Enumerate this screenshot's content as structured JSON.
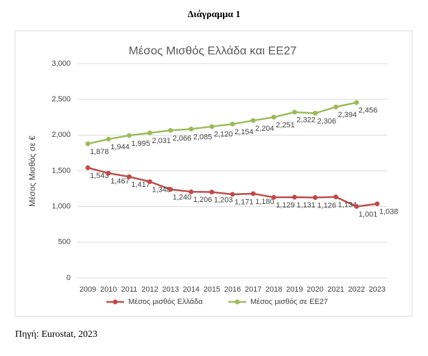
{
  "document": {
    "caption": "Διάγραμμα 1",
    "source": "Πηγή: Eurostat, 2023"
  },
  "chart_data": {
    "type": "line",
    "title": "Μέσος Μισθός Ελλάδα και ΕΕ27",
    "y_label": "Μέσος Μισθός σε €",
    "categories": [
      "2009",
      "2010",
      "2011",
      "2012",
      "2013",
      "2014",
      "2015",
      "2016",
      "2017",
      "2018",
      "2019",
      "2020",
      "2021",
      "2022",
      "2023"
    ],
    "series": [
      {
        "name": "Μέσος μισθός Ελλάδα",
        "color": "#be4b48",
        "values": [
          1543,
          1467,
          1417,
          1348,
          1240,
          1206,
          1203,
          1171,
          1180,
          1129,
          1131,
          1126,
          1134,
          1001,
          1038
        ],
        "value_labels": [
          "1,543",
          "1,467",
          "1,417",
          "1,348",
          "1,240",
          "1,206",
          "1,203",
          "1,171",
          "1,180",
          "1,129",
          "1,131",
          "1,126",
          "1,134",
          "1,001",
          "1,038"
        ]
      },
      {
        "name": "Μέσος μισθός σε ΕΕ27",
        "color": "#9bbb59",
        "values": [
          1878,
          1944,
          1995,
          2031,
          2066,
          2085,
          2120,
          2154,
          2204,
          2251,
          2322,
          2306,
          2394,
          2456,
          null
        ],
        "value_labels": [
          "1,878",
          "1,944",
          "1,995",
          "2,031",
          "2,066",
          "2,085",
          "2,120",
          "2,154",
          "2,204",
          "2,251",
          "2,322",
          "2,306",
          "2,394",
          "2,456",
          null
        ]
      }
    ],
    "ylim": [
      0,
      3000
    ],
    "yticks": [
      0,
      500,
      {
        "value": 1000,
        "label": "1,000"
      },
      {
        "value": 1500,
        "label": "1,500"
      },
      {
        "value": 2000,
        "label": "2,000"
      },
      {
        "value": 2500,
        "label": "2,500"
      },
      {
        "value": 3000,
        "label": "3,000"
      }
    ],
    "grid": true,
    "legend": "bottom"
  }
}
